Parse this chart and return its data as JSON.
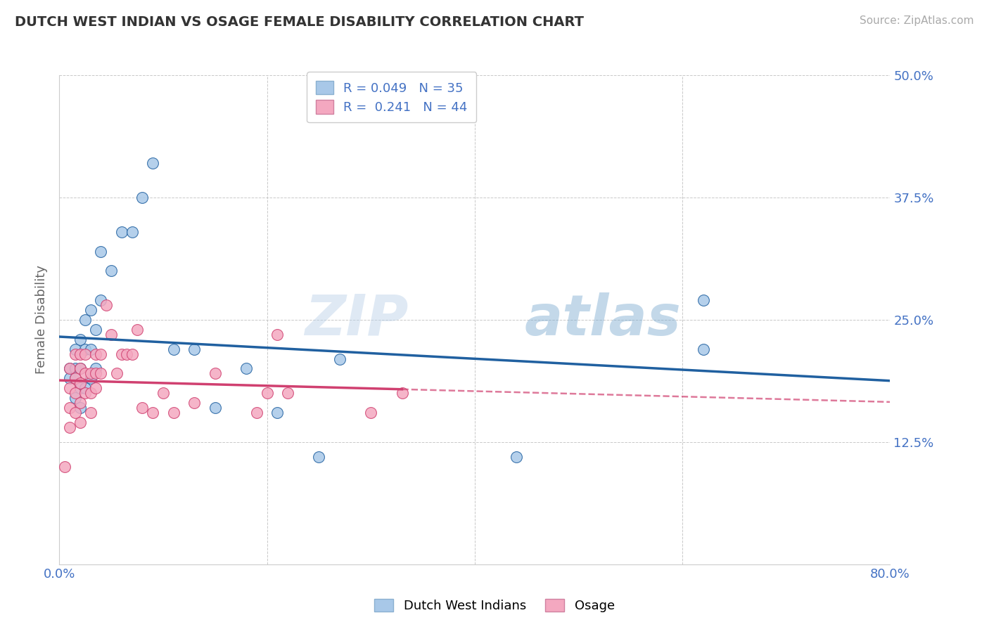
{
  "title": "DUTCH WEST INDIAN VS OSAGE FEMALE DISABILITY CORRELATION CHART",
  "source": "Source: ZipAtlas.com",
  "ylabel": "Female Disability",
  "xlim": [
    0.0,
    0.8
  ],
  "ylim": [
    0.0,
    0.5
  ],
  "legend1_r": "0.049",
  "legend1_n": "35",
  "legend2_r": "0.241",
  "legend2_n": "44",
  "blue_color": "#a8c8e8",
  "pink_color": "#f4a8c0",
  "line_blue": "#2060a0",
  "line_pink": "#d04070",
  "background": "#ffffff",
  "grid_color": "#bbbbbb",
  "watermark": "ZIPatlas",
  "dutch_x": [
    0.01,
    0.01,
    0.015,
    0.015,
    0.015,
    0.015,
    0.02,
    0.02,
    0.02,
    0.02,
    0.025,
    0.025,
    0.025,
    0.03,
    0.03,
    0.03,
    0.035,
    0.035,
    0.04,
    0.04,
    0.05,
    0.06,
    0.07,
    0.08,
    0.09,
    0.11,
    0.13,
    0.15,
    0.18,
    0.21,
    0.25,
    0.27,
    0.44,
    0.62,
    0.62
  ],
  "dutch_y": [
    0.2,
    0.19,
    0.22,
    0.2,
    0.19,
    0.17,
    0.23,
    0.2,
    0.18,
    0.16,
    0.25,
    0.22,
    0.18,
    0.26,
    0.22,
    0.19,
    0.24,
    0.2,
    0.32,
    0.27,
    0.3,
    0.34,
    0.34,
    0.375,
    0.41,
    0.22,
    0.22,
    0.16,
    0.2,
    0.155,
    0.11,
    0.21,
    0.11,
    0.27,
    0.22
  ],
  "osage_x": [
    0.005,
    0.01,
    0.01,
    0.01,
    0.01,
    0.015,
    0.015,
    0.015,
    0.015,
    0.02,
    0.02,
    0.02,
    0.02,
    0.02,
    0.025,
    0.025,
    0.025,
    0.03,
    0.03,
    0.03,
    0.035,
    0.035,
    0.035,
    0.04,
    0.04,
    0.045,
    0.05,
    0.055,
    0.06,
    0.065,
    0.07,
    0.075,
    0.08,
    0.09,
    0.1,
    0.11,
    0.13,
    0.15,
    0.19,
    0.2,
    0.21,
    0.22,
    0.3,
    0.33
  ],
  "osage_y": [
    0.1,
    0.14,
    0.16,
    0.18,
    0.2,
    0.155,
    0.175,
    0.19,
    0.215,
    0.145,
    0.165,
    0.185,
    0.2,
    0.215,
    0.175,
    0.195,
    0.215,
    0.155,
    0.175,
    0.195,
    0.18,
    0.195,
    0.215,
    0.195,
    0.215,
    0.265,
    0.235,
    0.195,
    0.215,
    0.215,
    0.215,
    0.24,
    0.16,
    0.155,
    0.175,
    0.155,
    0.165,
    0.195,
    0.155,
    0.175,
    0.235,
    0.175,
    0.155,
    0.175
  ]
}
